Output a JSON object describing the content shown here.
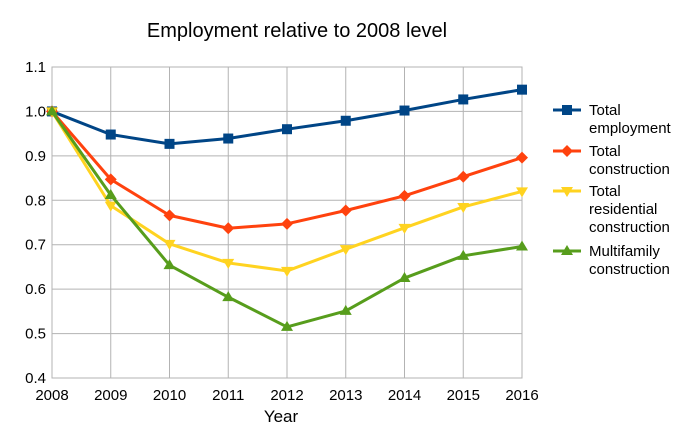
{
  "chart_data": {
    "type": "line",
    "title": "Employment relative to 2008 level",
    "xlabel": "Year",
    "ylabel": "",
    "ylim": [
      0.4,
      1.1
    ],
    "yticks": [
      "0.4",
      "0.5",
      "0.6",
      "0.7",
      "0.8",
      "0.9",
      "1.0",
      "1.1"
    ],
    "grid": true,
    "legend_position": "right",
    "categories": [
      "2008",
      "2009",
      "2010",
      "2011",
      "2012",
      "2013",
      "2014",
      "2015",
      "2016"
    ],
    "series": [
      {
        "name": "Total employment",
        "legend_lines": [
          "Total",
          "employment"
        ],
        "color": "#004586",
        "marker": "square",
        "values": [
          1.0,
          0.948,
          0.927,
          0.939,
          0.96,
          0.979,
          1.002,
          1.027,
          1.049
        ]
      },
      {
        "name": "Total construction",
        "legend_lines": [
          "Total",
          "construction"
        ],
        "color": "#ff420e",
        "marker": "diamond",
        "values": [
          1.0,
          0.847,
          0.766,
          0.737,
          0.747,
          0.777,
          0.81,
          0.853,
          0.896
        ]
      },
      {
        "name": "Total residential construction",
        "legend_lines": [
          "Total",
          "residential",
          "construction"
        ],
        "color": "#ffd320",
        "marker": "triangle-down",
        "values": [
          1.0,
          0.788,
          0.702,
          0.659,
          0.641,
          0.69,
          0.738,
          0.785,
          0.82
        ]
      },
      {
        "name": "Multifamily construction",
        "legend_lines": [
          "Multifamily",
          "construction"
        ],
        "color": "#579d1c",
        "marker": "triangle-up",
        "values": [
          1.0,
          0.812,
          0.654,
          0.582,
          0.515,
          0.551,
          0.625,
          0.675,
          0.696
        ]
      }
    ]
  }
}
